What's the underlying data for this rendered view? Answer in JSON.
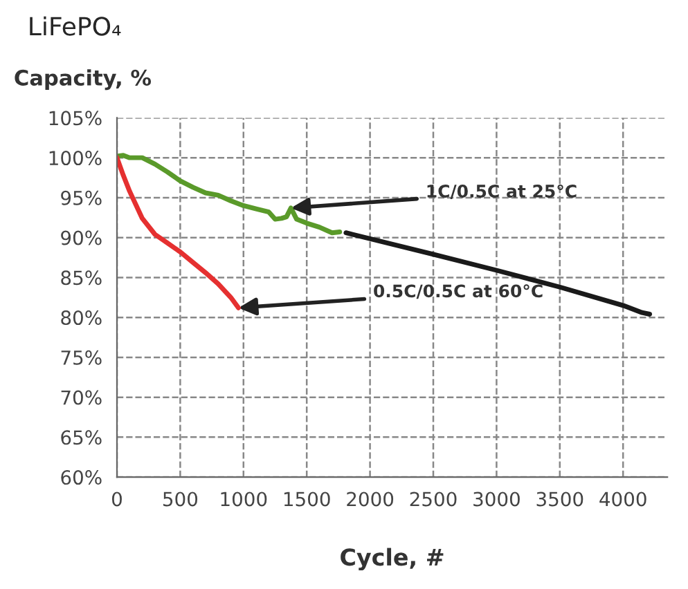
{
  "chart_data": {
    "type": "line",
    "title": "LiFePO₄",
    "ylabel": "Capacity, %",
    "xlabel": "Cycle, #",
    "xlim": [
      0,
      4350
    ],
    "xticks": [
      0,
      500,
      1000,
      1500,
      2000,
      2500,
      3000,
      3500,
      4000
    ],
    "ylim": [
      60,
      105
    ],
    "yticks": [
      {
        "value": 60,
        "label": "60%"
      },
      {
        "value": 65,
        "label": "65%"
      },
      {
        "value": 70,
        "label": "70%"
      },
      {
        "value": 75,
        "label": "75%"
      },
      {
        "value": 80,
        "label": "80%"
      },
      {
        "value": 85,
        "label": "85%"
      },
      {
        "value": 90,
        "label": "90%"
      },
      {
        "value": 95,
        "label": "95%"
      },
      {
        "value": 100,
        "label": "100%"
      },
      {
        "value": 105,
        "label": "105%"
      }
    ],
    "grid": true,
    "line_style": "solid",
    "series": [
      {
        "color": "#5a9a2a",
        "x": [
          0,
          50,
          100,
          200,
          300,
          400,
          500,
          600,
          700,
          800,
          900,
          1000,
          1100,
          1200,
          1250,
          1300,
          1340,
          1375,
          1420,
          1500,
          1600,
          1700,
          1760
        ],
        "values": [
          100.2,
          100.3,
          100,
          100,
          99.2,
          98.2,
          97.1,
          96.3,
          95.6,
          95.3,
          94.6,
          94,
          93.6,
          93.2,
          92.3,
          92.4,
          92.6,
          93.7,
          92.3,
          91.8,
          91.3,
          90.6,
          90.7
        ]
      },
      {
        "color": "#1a1a1a",
        "x": [
          1810,
          2500,
          3000,
          3500,
          4000,
          4150,
          4210
        ],
        "values": [
          90.6,
          87.9,
          85.9,
          83.8,
          81.5,
          80.6,
          80.4
        ]
      },
      {
        "color": "#e53030",
        "x": [
          0,
          50,
          100,
          200,
          300,
          400,
          500,
          600,
          700,
          800,
          900,
          960
        ],
        "values": [
          100,
          97.8,
          95.8,
          92.4,
          90.4,
          89.3,
          88.2,
          86.9,
          85.6,
          84.2,
          82.5,
          81.2
        ]
      }
    ],
    "annotations": [
      {
        "text": "1C/0.5C at 25°C",
        "x": 1375,
        "y": 93.7
      },
      {
        "text": "0.5C/0.5C at 60°C",
        "x": 960,
        "y": 81.2
      }
    ]
  }
}
